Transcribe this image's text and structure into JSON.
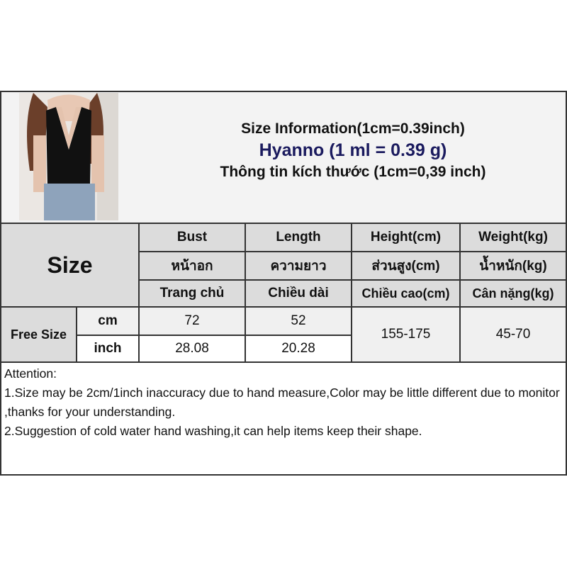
{
  "header": {
    "line1": "Size Information(1cm=0.39inch)",
    "line2": "Hyanno (1 ml = 0.39 g)",
    "line3": "Thông tin kích thước (1cm=0,39 inch)",
    "brand_color": "#1a1a5e"
  },
  "table": {
    "size_label": "Size",
    "columns": [
      {
        "en": "Bust",
        "th": "หน้าอก",
        "vi": "Trang chủ"
      },
      {
        "en": "Length",
        "th": "ความยาว",
        "vi": "Chiều dài"
      },
      {
        "en": "Height(cm)",
        "th": "ส่วนสูง(cm)",
        "vi": "Chiều cao(cm)"
      },
      {
        "en": "Weight(kg)",
        "th": "น้ำหนัก(kg)",
        "vi": "Cân nặng(kg)"
      }
    ],
    "row": {
      "size": "Free Size",
      "unit_cm": "cm",
      "unit_inch": "inch",
      "bust_cm": "72",
      "length_cm": "52",
      "bust_inch": "28.08",
      "length_inch": "20.28",
      "height": "155-175",
      "weight": "45-70"
    }
  },
  "attention": {
    "title": "Attention:",
    "note1": "1.Size may be 2cm/1inch inaccuracy due to hand measure,Color may be little different due to monitor ,thanks for your understanding.",
    "note2": "2.Suggestion of cold water hand washing,it can help items keep their shape."
  }
}
